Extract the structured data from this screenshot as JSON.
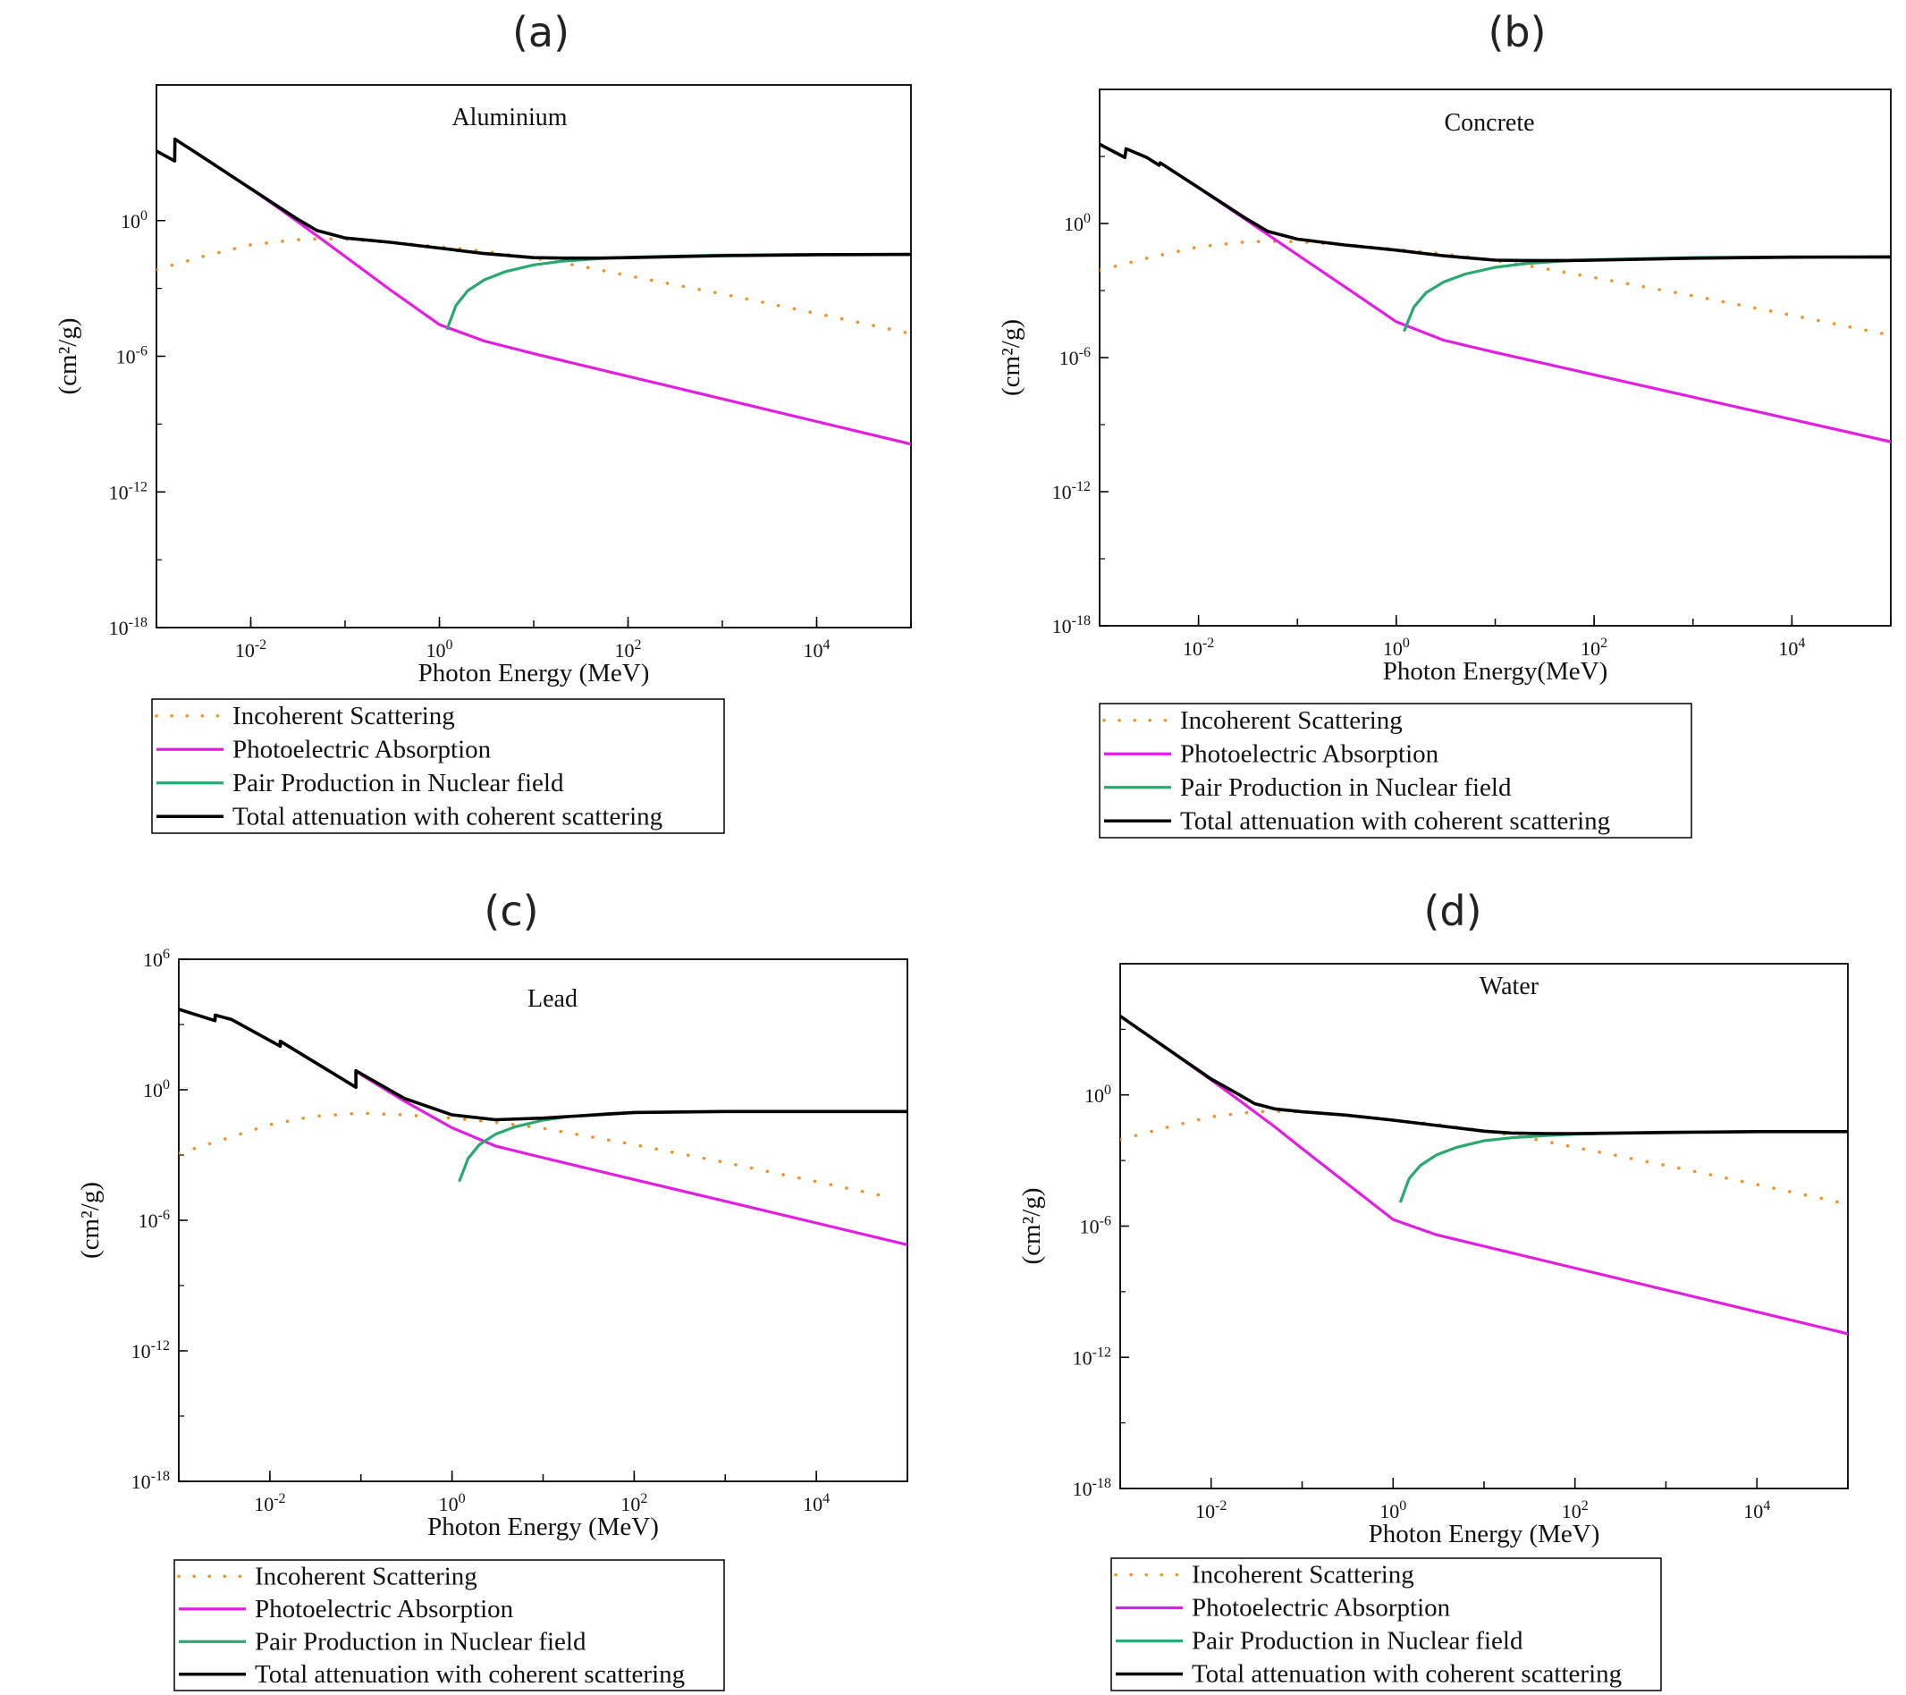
{
  "chart_data": [
    {
      "panel": "(a)",
      "title": "Aluminium",
      "type": "line",
      "xlabel": "Photon Energy (MeV)",
      "ylabel": "(cm²/g)",
      "x_scale": "log",
      "y_scale": "log",
      "xlim": [
        0.001,
        100000
      ],
      "ylim": [
        1e-18,
        1000000.0
      ],
      "xticks": [
        "10-2",
        "100",
        "102",
        "104"
      ],
      "yticks": [
        "10-18",
        "10-12",
        "10-6",
        "100"
      ],
      "legend": "below",
      "series": [
        {
          "name": "Incoherent Scattering",
          "color": "#f0922b",
          "style": "dotted",
          "x": [
            0.001,
            0.003,
            0.01,
            0.03,
            0.05,
            0.1,
            0.3,
            1,
            3,
            10,
            30,
            100,
            1000,
            10000,
            100000
          ],
          "y": [
            0.0068,
            0.025,
            0.085,
            0.14,
            0.155,
            0.151,
            0.11,
            0.07,
            0.044,
            0.022,
            0.01,
            0.0037,
            0.00057,
            7.8e-05,
            1e-05
          ]
        },
        {
          "name": "Photoelectric Absorption",
          "color": "#e21fe0",
          "style": "solid",
          "x": [
            0.001,
            0.00156,
            0.00157,
            0.003,
            0.01,
            0.02,
            0.03,
            0.05,
            0.1,
            0.3,
            1,
            3,
            10,
            100,
            1000,
            10000,
            100000
          ],
          "y": [
            1185,
            430,
            4000,
            700,
            26,
            3.44,
            1.02,
            0.22,
            0.026,
            0.00088,
            2.5e-05,
            4.7e-06,
            1.3e-06,
            1.3e-07,
            1.3e-08,
            1.3e-09,
            1.3e-10
          ]
        },
        {
          "name": "Pair Production in Nuclear field",
          "color": "#2aa870",
          "style": "solid",
          "x": [
            1.2,
            1.5,
            2,
            3,
            5,
            10,
            20,
            50,
            100,
            1000,
            10000,
            100000
          ],
          "y": [
            1.5e-05,
            0.00018,
            0.0008,
            0.0024,
            0.0055,
            0.011,
            0.016,
            0.021,
            0.024,
            0.03,
            0.032,
            0.032
          ]
        },
        {
          "name": "Total attenuation with coherent scattering",
          "color": "#000000",
          "style": "solid",
          "x": [
            0.001,
            0.00156,
            0.00157,
            0.003,
            0.01,
            0.03,
            0.05,
            0.1,
            0.3,
            1,
            3,
            10,
            20,
            50,
            100,
            1000,
            10000,
            100000
          ],
          "y": [
            1185,
            430,
            4000,
            700,
            26,
            1.3,
            0.37,
            0.17,
            0.11,
            0.061,
            0.035,
            0.023,
            0.022,
            0.022,
            0.023,
            0.028,
            0.031,
            0.032
          ]
        }
      ]
    },
    {
      "panel": "(b)",
      "title": "Concrete",
      "type": "line",
      "xlabel": "Photon Energy(MeV)",
      "ylabel": "(cm²/g)",
      "x_scale": "log",
      "y_scale": "log",
      "xlim": [
        0.001,
        100000
      ],
      "ylim": [
        1e-18,
        1000000.0
      ],
      "xticks": [
        "10-2",
        "100",
        "102",
        "104"
      ],
      "yticks": [
        "10-18",
        "10-12",
        "10-6",
        "100"
      ],
      "legend": "below",
      "series": [
        {
          "name": "Incoherent Scattering",
          "color": "#f0922b",
          "style": "dotted",
          "x": [
            0.001,
            0.003,
            0.01,
            0.03,
            0.05,
            0.1,
            0.3,
            1,
            3,
            10,
            30,
            100,
            1000,
            10000,
            100000
          ],
          "y": [
            0.008,
            0.028,
            0.09,
            0.15,
            0.16,
            0.154,
            0.11,
            0.071,
            0.044,
            0.022,
            0.01,
            0.0038,
            0.00058,
            7.9e-05,
            1e-05
          ]
        },
        {
          "name": "Photoelectric Absorption",
          "color": "#e21fe0",
          "style": "solid",
          "x": [
            0.001,
            0.0018,
            0.00185,
            0.003,
            0.004,
            0.0041,
            0.01,
            0.03,
            0.1,
            0.3,
            1,
            3,
            10,
            100,
            1000,
            10000,
            100000
          ],
          "y": [
            3500,
            900,
            2200,
            900,
            400,
            520,
            40,
            1.5,
            0.04,
            0.0015,
            4e-05,
            6e-06,
            1.7e-06,
            1.7e-07,
            1.7e-08,
            1.7e-09,
            1.7e-10
          ]
        },
        {
          "name": "Pair Production in Nuclear field",
          "color": "#2aa870",
          "style": "solid",
          "x": [
            1.2,
            1.5,
            2,
            3,
            5,
            10,
            20,
            50,
            100,
            1000,
            10000,
            100000
          ],
          "y": [
            1.5e-05,
            0.00018,
            0.0008,
            0.0024,
            0.0055,
            0.011,
            0.016,
            0.021,
            0.024,
            0.03,
            0.032,
            0.032
          ]
        },
        {
          "name": "Total attenuation with coherent scattering",
          "color": "#000000",
          "style": "solid",
          "x": [
            0.001,
            0.0018,
            0.00185,
            0.003,
            0.004,
            0.0041,
            0.01,
            0.03,
            0.05,
            0.1,
            0.3,
            1,
            3,
            10,
            20,
            50,
            100,
            1000,
            10000,
            100000
          ],
          "y": [
            3500,
            900,
            2200,
            900,
            400,
            520,
            40,
            1.7,
            0.45,
            0.2,
            0.11,
            0.064,
            0.036,
            0.023,
            0.022,
            0.022,
            0.023,
            0.028,
            0.031,
            0.032
          ]
        }
      ]
    },
    {
      "panel": "(c)",
      "title": "Lead",
      "type": "line",
      "xlabel": "Photon Energy (MeV)",
      "ylabel": "(cm²/g)",
      "x_scale": "log",
      "y_scale": "log",
      "xlim": [
        0.001,
        100000
      ],
      "ylim": [
        1e-18,
        1000000.0
      ],
      "xticks": [
        "10-2",
        "100",
        "102",
        "104"
      ],
      "yticks": [
        "10-18",
        "10-12",
        "10-6",
        "100",
        "106"
      ],
      "legend": "below",
      "series": [
        {
          "name": "Incoherent Scattering",
          "color": "#f0922b",
          "style": "dotted",
          "x": [
            0.001,
            0.003,
            0.01,
            0.03,
            0.1,
            0.3,
            1,
            3,
            10,
            100,
            1000,
            10000,
            60000
          ],
          "y": [
            0.0012,
            0.005,
            0.025,
            0.06,
            0.085,
            0.07,
            0.05,
            0.032,
            0.017,
            0.003,
            0.00045,
            6e-05,
            1.2e-05
          ]
        },
        {
          "name": "Photoelectric Absorption",
          "color": "#e21fe0",
          "style": "solid",
          "x": [
            0.001,
            0.0025,
            0.00251,
            0.0038,
            0.013,
            0.01301,
            0.016,
            0.088,
            0.08801,
            0.1,
            0.3,
            1,
            3,
            10,
            100,
            1000,
            10000,
            100000
          ],
          "y": [
            5000,
            1500,
            2700,
            1700,
            100,
            170,
            100,
            1.3,
            7.5,
            5,
            0.3,
            0.018,
            0.0026,
            0.00075,
            7.5e-05,
            7.5e-06,
            7.5e-07,
            7.5e-08
          ]
        },
        {
          "name": "Pair Production in Nuclear field",
          "color": "#2aa870",
          "style": "solid",
          "x": [
            1.2,
            1.5,
            2,
            3,
            5,
            10,
            20,
            50,
            100,
            1000,
            10000,
            100000
          ],
          "y": [
            6e-05,
            0.0007,
            0.003,
            0.009,
            0.02,
            0.04,
            0.06,
            0.08,
            0.09,
            0.1,
            0.1,
            0.1
          ]
        },
        {
          "name": "Total attenuation with coherent scattering",
          "color": "#000000",
          "style": "solid",
          "x": [
            0.001,
            0.0025,
            0.00251,
            0.0038,
            0.013,
            0.01301,
            0.016,
            0.088,
            0.08801,
            0.1,
            0.3,
            1,
            3,
            10,
            100,
            1000,
            10000,
            100000
          ],
          "y": [
            5000,
            1500,
            2700,
            1700,
            100,
            170,
            100,
            1.3,
            7.5,
            5.5,
            0.4,
            0.07,
            0.042,
            0.05,
            0.09,
            0.1,
            0.1,
            0.1
          ]
        }
      ]
    },
    {
      "panel": "(d)",
      "title": "Water",
      "type": "line",
      "xlabel": "Photon Energy (MeV)",
      "ylabel": "(cm²/g)",
      "x_scale": "log",
      "y_scale": "log",
      "xlim": [
        0.001,
        100000
      ],
      "ylim": [
        1e-18,
        1000000.0
      ],
      "xticks": [
        "10-2",
        "100",
        "102",
        "104"
      ],
      "yticks": [
        "10-18",
        "10-12",
        "10-6",
        "100"
      ],
      "legend": "below",
      "series": [
        {
          "name": "Incoherent Scattering",
          "color": "#f0922b",
          "style": "dotted",
          "x": [
            0.001,
            0.003,
            0.01,
            0.03,
            0.05,
            0.1,
            0.3,
            1,
            3,
            10,
            30,
            100,
            1000,
            10000,
            100000
          ],
          "y": [
            0.009,
            0.03,
            0.1,
            0.17,
            0.18,
            0.17,
            0.12,
            0.07,
            0.045,
            0.023,
            0.011,
            0.004,
            0.0006,
            8e-05,
            1e-05
          ]
        },
        {
          "name": "Photoelectric Absorption",
          "color": "#e21fe0",
          "style": "solid",
          "x": [
            0.001,
            0.003,
            0.01,
            0.02,
            0.03,
            0.05,
            0.1,
            0.3,
            1,
            3,
            10,
            100,
            1000,
            10000,
            100000
          ],
          "y": [
            4000,
            170,
            4.9,
            0.6,
            0.17,
            0.035,
            0.0035,
            0.0001,
            2e-06,
            4e-07,
            1.2e-07,
            1.2e-08,
            1.2e-09,
            1.2e-10,
            1.2e-11
          ]
        },
        {
          "name": "Pair Production in Nuclear field",
          "color": "#2aa870",
          "style": "solid",
          "x": [
            1.2,
            1.5,
            2,
            3,
            5,
            10,
            20,
            50,
            100,
            1000,
            10000,
            100000
          ],
          "y": [
            1.2e-05,
            0.00015,
            0.0006,
            0.0018,
            0.004,
            0.008,
            0.011,
            0.014,
            0.016,
            0.02,
            0.021,
            0.021
          ]
        },
        {
          "name": "Total attenuation with coherent scattering",
          "color": "#000000",
          "style": "solid",
          "x": [
            0.001,
            0.003,
            0.01,
            0.02,
            0.03,
            0.05,
            0.1,
            0.3,
            1,
            3,
            10,
            20,
            50,
            100,
            1000,
            10000,
            100000
          ],
          "y": [
            4000,
            170,
            5.3,
            1.06,
            0.4,
            0.23,
            0.17,
            0.12,
            0.07,
            0.04,
            0.022,
            0.018,
            0.017,
            0.017,
            0.019,
            0.021,
            0.021
          ]
        }
      ]
    }
  ]
}
